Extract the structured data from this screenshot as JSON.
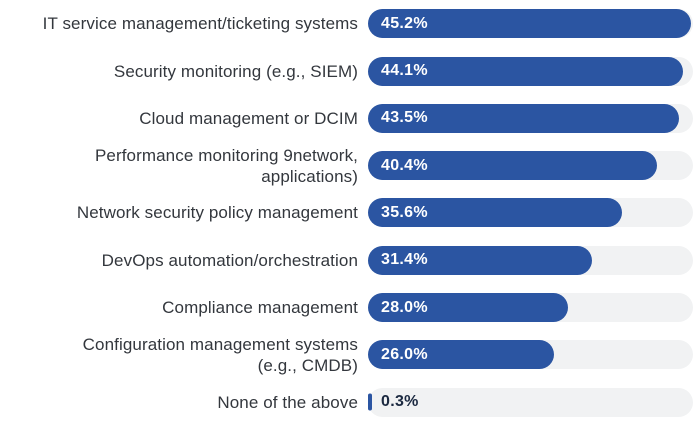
{
  "chart_data": {
    "type": "bar",
    "orientation": "horizontal",
    "title": "",
    "xlabel": "",
    "ylabel": "",
    "xlim": [
      0,
      45.5
    ],
    "grid": false,
    "legend": false,
    "categories": [
      "IT service management/ticketing systems",
      "Security monitoring (e.g., SIEM)",
      "Cloud management or DCIM",
      "Performance monitoring 9network,\napplications)",
      "Network security policy management",
      "DevOps automation/orchestration",
      "Compliance management",
      "Configuration management systems\n(e.g., CMDB)",
      "None of the above"
    ],
    "values": [
      45.2,
      44.1,
      43.5,
      40.4,
      35.6,
      31.4,
      28.0,
      26.0,
      0.3
    ],
    "value_labels": [
      "45.2%",
      "44.1%",
      "43.5%",
      "40.4%",
      "35.6%",
      "31.4%",
      "28.0%",
      "26.0%",
      "0.3%"
    ],
    "colors": {
      "bar": "#2b55a2",
      "track": "#f1f2f3",
      "category_label": "#33373d",
      "value_label_on_bar": "#ffffff",
      "value_label_on_track": "#1b2940"
    }
  }
}
